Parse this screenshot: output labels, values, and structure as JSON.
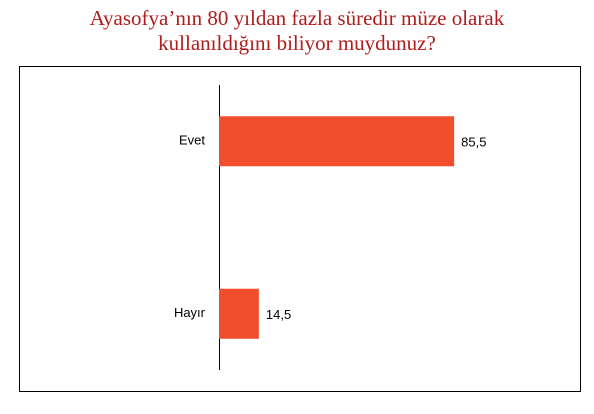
{
  "chart_data": {
    "type": "barh",
    "title": [
      "Ayasofya’nın 80 yıldan fazla süredir müze olarak",
      "kullanıldığını biliyor muydunuz?"
    ],
    "categories": [
      "Evet",
      "Hayır"
    ],
    "values": [
      85.5,
      14.5
    ],
    "value_labels": [
      "85,5",
      "14,5"
    ],
    "color": "#f04e2d",
    "xlim": [
      0,
      100
    ]
  }
}
